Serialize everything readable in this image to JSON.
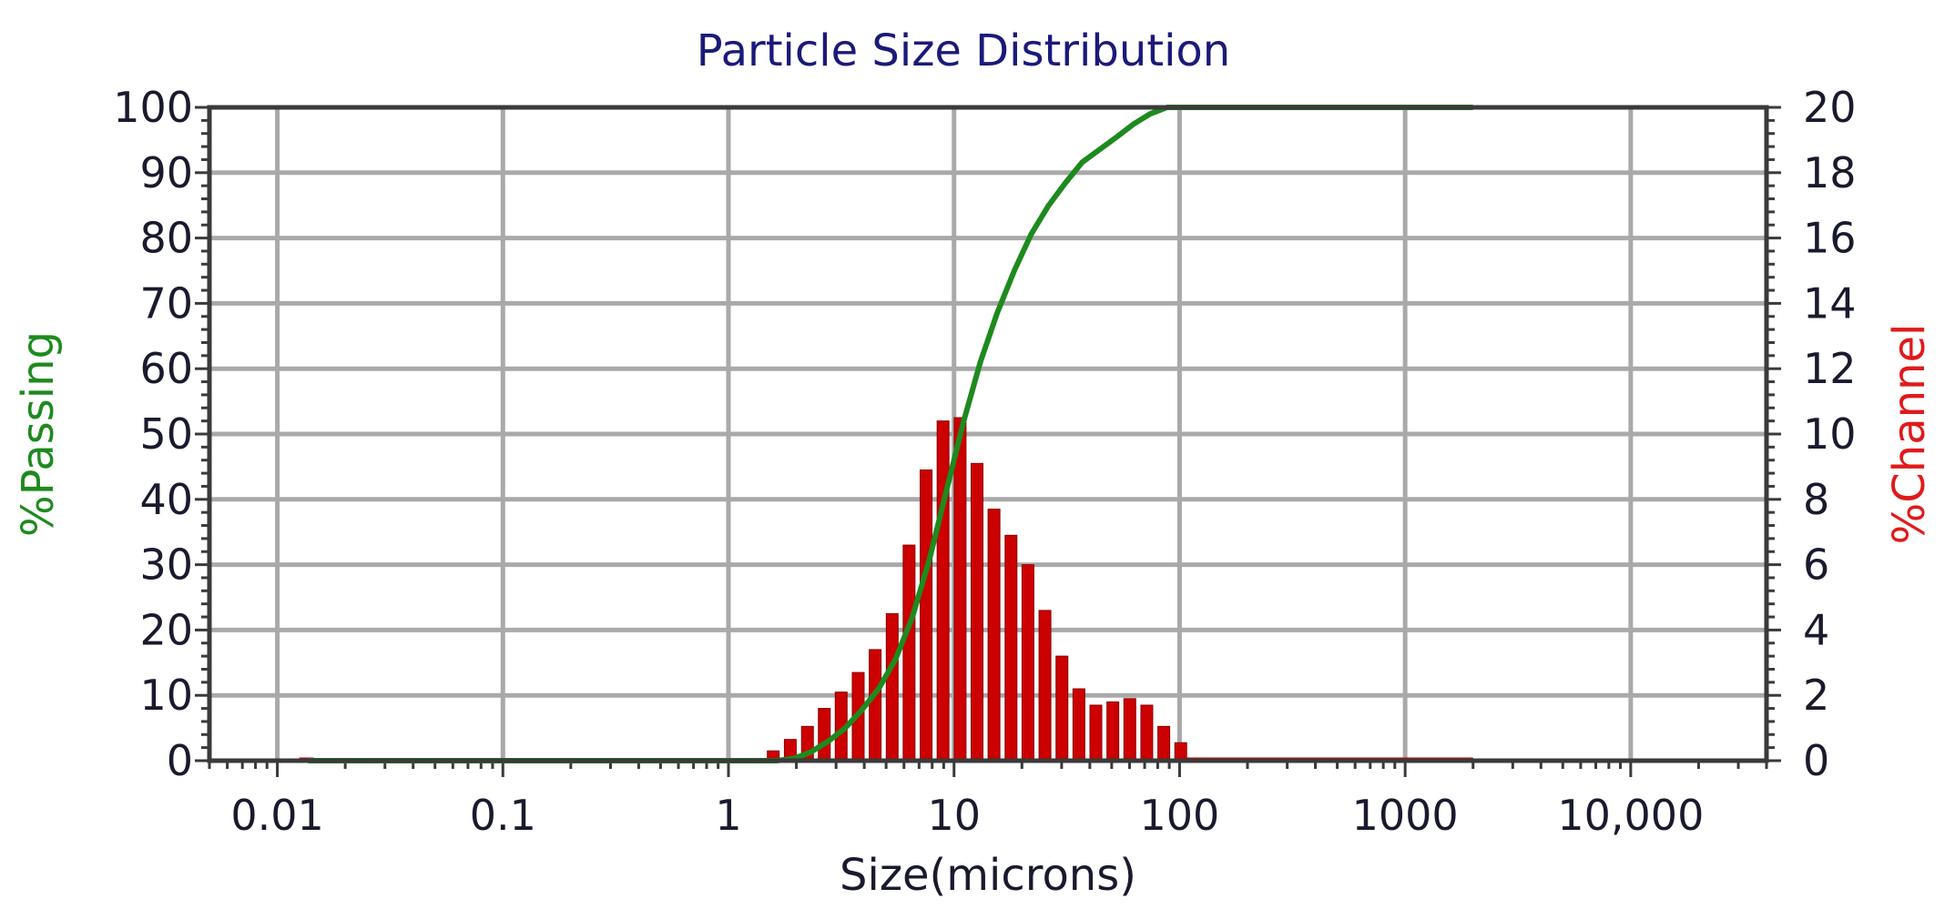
{
  "chart_data": {
    "type": "bar",
    "title": "Particle Size Distribution",
    "xlabel": "Size(microns)",
    "ylabel": "%Passing",
    "ylabel_right": "%Channel",
    "x_scale": "log",
    "xlim": [
      0.005,
      40000
    ],
    "ylim": [
      0,
      100
    ],
    "ylim_right": [
      0,
      20
    ],
    "x_ticks": [
      {
        "value": 0.01,
        "label": "0.01"
      },
      {
        "value": 0.1,
        "label": "0.1"
      },
      {
        "value": 1,
        "label": "1"
      },
      {
        "value": 10,
        "label": "10"
      },
      {
        "value": 100,
        "label": "100"
      },
      {
        "value": 1000,
        "label": "1000"
      },
      {
        "value": 10000,
        "label": "10,000"
      }
    ],
    "y_ticks_left": [
      "0",
      "10",
      "20",
      "30",
      "40",
      "50",
      "60",
      "70",
      "80",
      "90",
      "100"
    ],
    "y_ticks_right": [
      "0",
      "2",
      "4",
      "6",
      "8",
      "10",
      "12",
      "14",
      "16",
      "18",
      "20"
    ],
    "grid": true,
    "colors": {
      "title": "#1a1a7a",
      "passing": "#1e8a1e",
      "channel": "#cc0000",
      "grid": "#a9a9a9",
      "frame": "#3a3a3a"
    },
    "series": [
      {
        "name": "%Passing",
        "axis": "left",
        "type": "line",
        "x": [
          0.0137,
          1.0,
          1.63,
          1.94,
          2.31,
          2.75,
          3.27,
          3.89,
          4.63,
          5.5,
          6.54,
          7.78,
          9.25,
          11.0,
          13.08,
          15.56,
          18.5,
          22.0,
          26.16,
          31.11,
          37.0,
          44.0,
          52.33,
          62.23,
          74.0,
          88.0,
          104.7,
          2000
        ],
        "y": [
          0,
          0,
          0,
          0.3,
          1.3,
          2.9,
          4.9,
          7.7,
          11.0,
          15.5,
          22.0,
          30.8,
          41.3,
          51.8,
          61.0,
          68.6,
          75.0,
          80.6,
          84.9,
          88.4,
          91.6,
          93.5,
          95.4,
          97.4,
          99.0,
          100,
          100,
          100
        ]
      },
      {
        "name": "%Channel",
        "axis": "right",
        "type": "bar",
        "x": [
          1.58,
          1.88,
          2.24,
          2.66,
          3.16,
          3.76,
          4.47,
          5.32,
          6.32,
          7.52,
          8.94,
          10.64,
          12.65,
          15.04,
          17.89,
          21.27,
          25.3,
          30.09,
          35.78,
          42.55,
          50.6,
          60.17,
          71.56,
          85.1,
          101.2
        ],
        "y": [
          0.3,
          0.65,
          1.05,
          1.6,
          2.1,
          2.7,
          3.4,
          4.5,
          6.6,
          8.9,
          10.4,
          10.5,
          9.1,
          7.7,
          6.9,
          6.0,
          4.6,
          3.2,
          2.2,
          1.7,
          1.8,
          1.9,
          1.7,
          1.05,
          0.55
        ]
      }
    ]
  }
}
